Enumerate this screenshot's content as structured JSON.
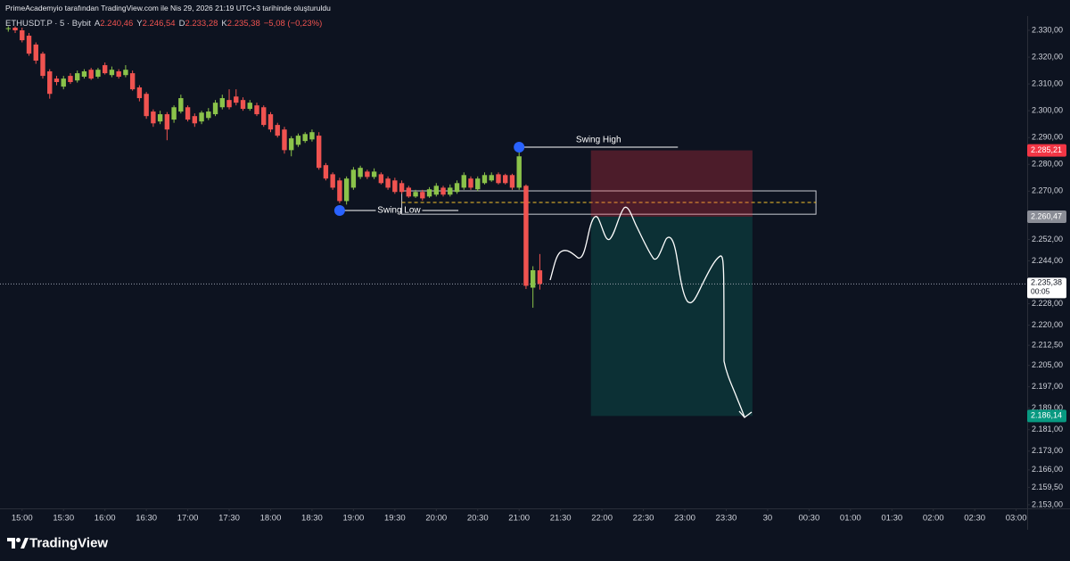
{
  "header": {
    "attribution": "PrimeAcademyio tarafından TradingView.com ile Nis 29, 2026 21:19 UTC+3 tarihinde oluşturuldu"
  },
  "footer": {
    "brand": "TradingView"
  },
  "chart_data": {
    "type": "candlestick",
    "legend": {
      "symbol": "ETHUSDT.P · 5 · Bybit",
      "items": [
        {
          "key": "A",
          "value": "2.240,46"
        },
        {
          "key": "Y",
          "value": "2.246,54"
        },
        {
          "key": "D",
          "value": "2.233,28"
        },
        {
          "key": "K",
          "value": "2.235,38"
        }
      ],
      "change": "−5,08 (−0,23%)"
    },
    "up_color": "#8bc34a",
    "down_color": "#f05350",
    "x": [
      "14:50",
      "14:55",
      "15:00",
      "15:05",
      "15:10",
      "15:15",
      "15:20",
      "15:25",
      "15:30",
      "15:35",
      "15:40",
      "15:45",
      "15:50",
      "15:55",
      "16:00",
      "16:05",
      "16:10",
      "16:15",
      "16:20",
      "16:25",
      "16:30",
      "16:35",
      "16:40",
      "16:45",
      "16:50",
      "16:55",
      "17:00",
      "17:05",
      "17:10",
      "17:15",
      "17:20",
      "17:25",
      "17:30",
      "17:35",
      "17:40",
      "17:45",
      "17:50",
      "17:55",
      "18:00",
      "18:05",
      "18:10",
      "18:15",
      "18:20",
      "18:25",
      "18:30",
      "18:35",
      "18:40",
      "18:45",
      "18:50",
      "18:55",
      "19:00",
      "19:05",
      "19:10",
      "19:15",
      "19:20",
      "19:25",
      "19:30",
      "19:35",
      "19:40",
      "19:45",
      "19:50",
      "19:55",
      "20:00",
      "20:05",
      "20:10",
      "20:15",
      "20:20",
      "20:25",
      "20:30",
      "20:35",
      "20:40",
      "20:45",
      "20:50",
      "20:55",
      "21:00",
      "21:05",
      "21:10",
      "21:15"
    ],
    "open": [
      2330.5,
      2331,
      2330,
      2328,
      2324.7,
      2321.3,
      2314.7,
      2312,
      2309,
      2313,
      2311.3,
      2312.7,
      2315.3,
      2312.7,
      2317,
      2313.3,
      2314.7,
      2313.3,
      2314,
      2308.7,
      2306.3,
      2299.7,
      2296,
      2298.7,
      2296.7,
      2299.7,
      2301.3,
      2298,
      2296,
      2297.3,
      2298.7,
      2301.3,
      2304,
      2305.3,
      2304,
      2300.7,
      2302,
      2301.3,
      2298.7,
      2294.7,
      2293,
      2285.3,
      2287.3,
      2288.7,
      2289.3,
      2290.7,
      2279.7,
      2276.3,
      2274,
      2266.3,
      2271.3,
      2275.3,
      2277.3,
      2275.3,
      2276.3,
      2274.7,
      2274,
      2273,
      2271.3,
      2268,
      2269.7,
      2268,
      2268.7,
      2271.3,
      2268.7,
      2269.7,
      2271.3,
      2274.7,
      2270.7,
      2273,
      2274,
      2276.3,
      2276,
      2276,
      2271.3,
      2272,
      2234,
      2240.46
    ],
    "high": [
      2331.5,
      2331.5,
      2331,
      2329,
      2325.5,
      2322,
      2315.5,
      2313,
      2313,
      2314,
      2315,
      2315.5,
      2316,
      2316,
      2318,
      2316.5,
      2315.5,
      2317,
      2315,
      2309.5,
      2307,
      2300.5,
      2300,
      2299.5,
      2302,
      2306,
      2302,
      2299,
      2300,
      2301,
      2304,
      2306,
      2308,
      2308,
      2305,
      2304,
      2303,
      2302,
      2299.5,
      2295.5,
      2294,
      2290.5,
      2291.5,
      2292,
      2293,
      2292,
      2280.5,
      2277,
      2275,
      2275.5,
      2279,
      2279.5,
      2278,
      2278.5,
      2277,
      2275.5,
      2275,
      2274,
      2272,
      2270.5,
      2270.5,
      2271.5,
      2273,
      2272,
      2272.5,
      2274,
      2277,
      2275.5,
      2275.5,
      2277,
      2277,
      2277,
      2276.5,
      2276.5,
      2285.2,
      2272.5,
      2242,
      2246.54
    ],
    "low": [
      2329.5,
      2329,
      2325.5,
      2320.5,
      2317.5,
      2312,
      2304.5,
      2309.5,
      2308,
      2310,
      2310.5,
      2312,
      2311.5,
      2312,
      2313.5,
      2312.5,
      2312,
      2312.5,
      2307.5,
      2303.5,
      2297,
      2294,
      2295,
      2289,
      2295.5,
      2299,
      2296,
      2294,
      2295,
      2296.5,
      2298,
      2300.5,
      2300.5,
      2302,
      2300,
      2300,
      2298,
      2294,
      2292,
      2290,
      2284,
      2283,
      2286.5,
      2288,
      2288.5,
      2278,
      2274,
      2270.5,
      2265.5,
      2265,
      2270.5,
      2274.5,
      2274.5,
      2274.5,
      2272.5,
      2270.5,
      2269,
      2269,
      2267.5,
      2267.5,
      2266.5,
      2267.5,
      2268,
      2268,
      2268,
      2269,
      2270.5,
      2270.5,
      2270,
      2272.5,
      2273.5,
      2272.5,
      2272.5,
      2270.5,
      2270.5,
      2233.5,
      2226.5,
      2233.28
    ],
    "close": [
      2330.8,
      2330,
      2326.3,
      2321.3,
      2318.7,
      2313,
      2306.3,
      2310.7,
      2312,
      2310.7,
      2314,
      2314.7,
      2312,
      2315.3,
      2314,
      2315.3,
      2312.7,
      2315.3,
      2308,
      2304.7,
      2298,
      2295.3,
      2298.7,
      2293,
      2301.3,
      2304.7,
      2296.7,
      2295.3,
      2299.3,
      2299.7,
      2303,
      2304.7,
      2301.3,
      2303,
      2300.7,
      2303,
      2298.7,
      2294.7,
      2293,
      2290.7,
      2285.3,
      2289.7,
      2290.7,
      2291.3,
      2292,
      2278.7,
      2274.7,
      2271.3,
      2266.3,
      2274.7,
      2278,
      2278.7,
      2275.3,
      2277.3,
      2273,
      2271.3,
      2269.7,
      2269.7,
      2268,
      2269.7,
      2267.3,
      2270.7,
      2272,
      2268.7,
      2271.3,
      2273,
      2276,
      2271.3,
      2274.7,
      2276,
      2276,
      2273,
      2273,
      2271.3,
      2283,
      2234.7,
      2240.5,
      2235.38
    ],
    "xlim": [
      "14:44",
      "03:08"
    ],
    "xticks": [
      {
        "value": "15:00",
        "label": "15:00"
      },
      {
        "value": "15:30",
        "label": "15:30"
      },
      {
        "value": "16:00",
        "label": "16:00"
      },
      {
        "value": "16:30",
        "label": "16:30"
      },
      {
        "value": "17:00",
        "label": "17:00"
      },
      {
        "value": "17:30",
        "label": "17:30"
      },
      {
        "value": "18:00",
        "label": "18:00"
      },
      {
        "value": "18:30",
        "label": "18:30"
      },
      {
        "value": "19:00",
        "label": "19:00"
      },
      {
        "value": "19:30",
        "label": "19:30"
      },
      {
        "value": "20:00",
        "label": "20:00"
      },
      {
        "value": "20:30",
        "label": "20:30"
      },
      {
        "value": "21:00",
        "label": "21:00"
      },
      {
        "value": "21:30",
        "label": "21:30"
      },
      {
        "value": "22:00",
        "label": "22:00"
      },
      {
        "value": "22:30",
        "label": "22:30"
      },
      {
        "value": "23:00",
        "label": "23:00"
      },
      {
        "value": "23:30",
        "label": "23:30"
      },
      {
        "value": "00:00",
        "label": "30"
      },
      {
        "value": "00:30",
        "label": "00:30"
      },
      {
        "value": "01:00",
        "label": "01:00"
      },
      {
        "value": "01:30",
        "label": "01:30"
      },
      {
        "value": "02:00",
        "label": "02:00"
      },
      {
        "value": "02:30",
        "label": "02:30"
      },
      {
        "value": "03:00",
        "label": "03:00"
      }
    ],
    "ylim": [
      2151.65,
      2334.66
    ],
    "yticks": [
      {
        "value": 2330,
        "label": "2.330,00"
      },
      {
        "value": 2320,
        "label": "2.320,00"
      },
      {
        "value": 2310,
        "label": "2.310,00"
      },
      {
        "value": 2300,
        "label": "2.300,00"
      },
      {
        "value": 2290,
        "label": "2.290,00"
      },
      {
        "value": 2280,
        "label": "2.280,00"
      },
      {
        "value": 2270,
        "label": "2.270,00"
      },
      {
        "value": 2252,
        "label": "2.252,00"
      },
      {
        "value": 2244,
        "label": "2.244,00"
      },
      {
        "value": 2228,
        "label": "2.228,00"
      },
      {
        "value": 2220,
        "label": "2.220,00"
      },
      {
        "value": 2212.5,
        "label": "2.212,50"
      },
      {
        "value": 2205,
        "label": "2.205,00"
      },
      {
        "value": 2197,
        "label": "2.197,00"
      },
      {
        "value": 2189,
        "label": "2.189,00"
      },
      {
        "value": 2181,
        "label": "2.181,00"
      },
      {
        "value": 2173,
        "label": "2.173,00"
      },
      {
        "value": 2166,
        "label": "2.166,00"
      },
      {
        "value": 2159.5,
        "label": "2.159,50"
      },
      {
        "value": 2153,
        "label": "2.153,00"
      }
    ],
    "swings": [
      {
        "label": "Swing High",
        "x": "21:00",
        "x2": "22:55",
        "y": 2286.4,
        "label_placement": "above"
      },
      {
        "label": "Swing Low",
        "x": "18:50",
        "x2": "20:16",
        "y": 2262.8,
        "label_placement": "middle"
      }
    ],
    "zone": {
      "x": [
        "19:35",
        "00:35"
      ],
      "y": [
        2261.4,
        2270.1
      ],
      "midline": 2265.8,
      "midline_color": "#f7c32b"
    },
    "position": {
      "x": [
        "21:52",
        "23:49"
      ],
      "stop": {
        "value": 2285.21,
        "label": "2.285,21",
        "color": "#f23645"
      },
      "entry": {
        "value": 2260.47,
        "label": "2.260,47",
        "color": "#8a8d96"
      },
      "target": {
        "value": 2186.14,
        "label": "2.186,14",
        "color": "#089981"
      }
    },
    "last_price": {
      "value": 2235.38,
      "label": "2.235,38",
      "countdown": "00:05"
    }
  }
}
